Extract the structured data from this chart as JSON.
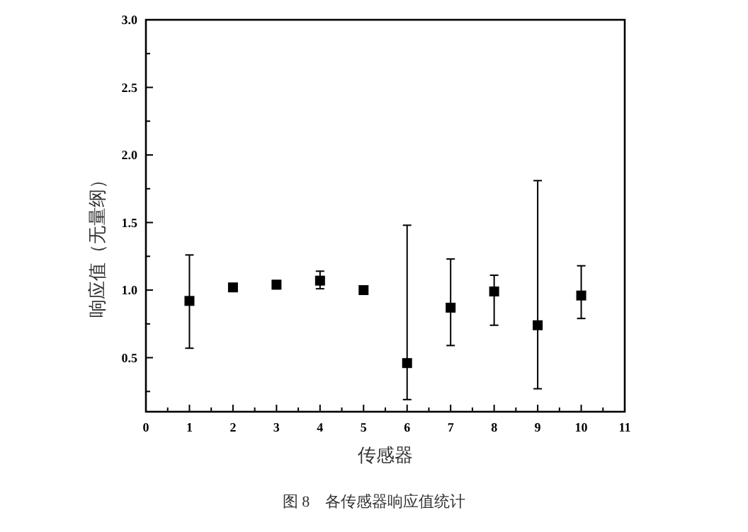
{
  "chart_data": {
    "type": "scatter",
    "xlabel": "传感器",
    "ylabel": "响应值（无量纲）",
    "annotations": [
      "图 8　各传感器响应值统计"
    ],
    "x": [
      1,
      2,
      3,
      4,
      5,
      6,
      7,
      8,
      9,
      10
    ],
    "series": [
      {
        "color": "#000000",
        "values": [
          0.92,
          1.02,
          1.04,
          1.07,
          1.0,
          0.46,
          0.87,
          0.99,
          0.74,
          0.96
        ],
        "errors": [
          [
            0.57,
            1.26
          ],
          null,
          [
            1.01,
            1.07
          ],
          [
            1.01,
            1.14
          ],
          null,
          [
            0.19,
            1.48
          ],
          [
            0.59,
            1.23
          ],
          [
            0.74,
            1.11
          ],
          [
            0.27,
            1.81
          ],
          [
            0.79,
            1.18
          ]
        ]
      }
    ],
    "xlim": [
      0,
      11
    ],
    "ylim": [
      0.1,
      3.0
    ],
    "xticks": [
      0,
      {
        "value": 0.5,
        "label": null
      },
      1,
      {
        "value": 1.5,
        "label": null
      },
      2,
      {
        "value": 2.5,
        "label": null
      },
      3,
      {
        "value": 3.5,
        "label": null
      },
      4,
      {
        "value": 4.5,
        "label": null
      },
      5,
      {
        "value": 5.5,
        "label": null
      },
      6,
      {
        "value": 6.5,
        "label": null
      },
      7,
      {
        "value": 7.5,
        "label": null
      },
      8,
      {
        "value": 8.5,
        "label": null
      },
      9,
      {
        "value": 9.5,
        "label": null
      },
      10,
      {
        "value": 10.5,
        "label": null
      },
      11
    ],
    "yticks": [
      {
        "value": 0.25,
        "label": null
      },
      {
        "value": 0.5,
        "label": "0.5"
      },
      {
        "value": 0.75,
        "label": null
      },
      {
        "value": 1.0,
        "label": "1.0"
      },
      {
        "value": 1.25,
        "label": null
      },
      {
        "value": 1.5,
        "label": "1.5"
      },
      {
        "value": 1.75,
        "label": null
      },
      {
        "value": 2.0,
        "label": "2.0"
      },
      {
        "value": 2.25,
        "label": null
      },
      {
        "value": 2.5,
        "label": "2.5"
      },
      {
        "value": 2.75,
        "label": null
      },
      {
        "value": 3.0,
        "label": "3.0"
      }
    ],
    "marker": "square",
    "grid": false
  }
}
